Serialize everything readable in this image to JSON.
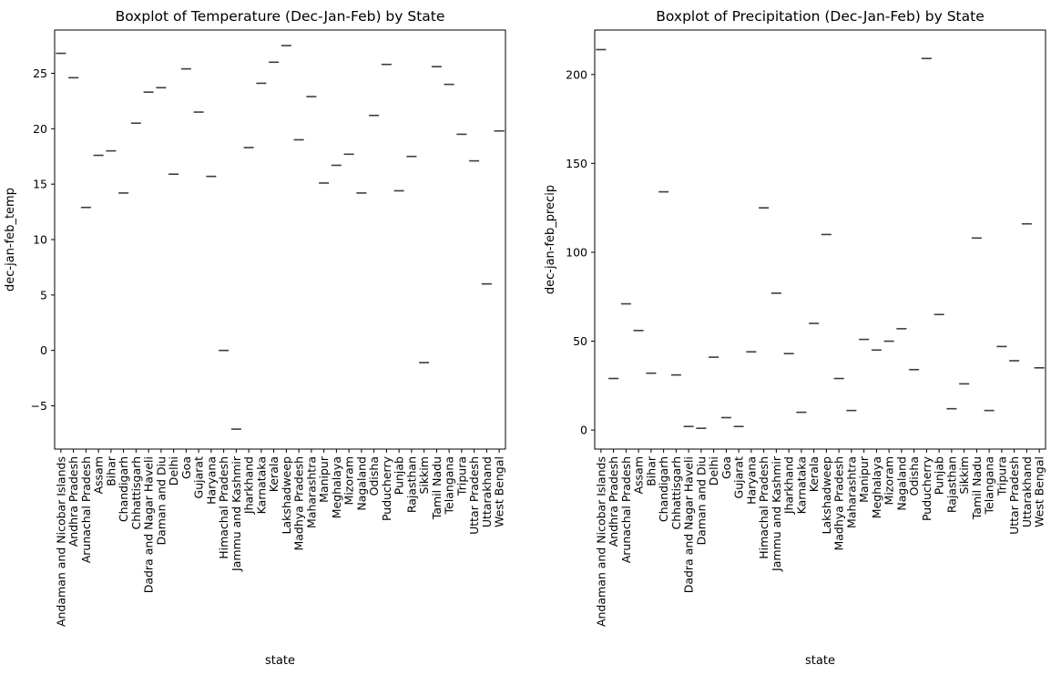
{
  "chart_data": [
    {
      "type": "box",
      "title": "Boxplot of Temperature (Dec-Jan-Feb) by State",
      "xlabel": "state",
      "ylabel": "dec-jan-feb_temp",
      "ylim": [
        -8.9,
        28.9
      ],
      "yticks": [
        -5,
        0,
        5,
        10,
        15,
        20,
        25
      ],
      "categories": [
        "Andaman and Nicobar Islands",
        "Andhra Pradesh",
        "Arunachal Pradesh",
        "Assam",
        "Bihar",
        "Chandigarh",
        "Chhattisgarh",
        "Dadra and Nagar Haveli",
        "Daman and Diu",
        "Delhi",
        "Goa",
        "Gujarat",
        "Haryana",
        "Himachal Pradesh",
        "Jammu and Kashmir",
        "Jharkhand",
        "Karnataka",
        "Kerala",
        "Lakshadweep",
        "Madhya Pradesh",
        "Maharashtra",
        "Manipur",
        "Meghalaya",
        "Mizoram",
        "Nagaland",
        "Odisha",
        "Puducherry",
        "Punjab",
        "Rajasthan",
        "Sikkim",
        "Tamil Nadu",
        "Telangana",
        "Tripura",
        "Uttar Pradesh",
        "Uttarakhand",
        "West Bengal"
      ],
      "values": [
        26.8,
        24.6,
        12.9,
        17.6,
        18.0,
        14.2,
        20.5,
        23.3,
        23.7,
        15.9,
        25.4,
        21.5,
        15.7,
        0.0,
        -7.1,
        18.3,
        24.1,
        26.0,
        27.5,
        19.0,
        22.9,
        15.1,
        16.7,
        17.7,
        14.2,
        21.2,
        25.8,
        14.4,
        17.5,
        -1.1,
        25.6,
        24.0,
        19.5,
        17.1,
        6.0,
        19.8
      ],
      "grid": false
    },
    {
      "type": "box",
      "title": "Boxplot of Precipitation (Dec-Jan-Feb) by State",
      "xlabel": "state",
      "ylabel": "dec-jan-feb_precip",
      "ylim": [
        -10.7,
        225
      ],
      "yticks": [
        0,
        50,
        100,
        150,
        200
      ],
      "categories": [
        "Andaman and Nicobar Islands",
        "Andhra Pradesh",
        "Arunachal Pradesh",
        "Assam",
        "Bihar",
        "Chandigarh",
        "Chhattisgarh",
        "Dadra and Nagar Haveli",
        "Daman and Diu",
        "Delhi",
        "Goa",
        "Gujarat",
        "Haryana",
        "Himachal Pradesh",
        "Jammu and Kashmir",
        "Jharkhand",
        "Karnataka",
        "Kerala",
        "Lakshadweep",
        "Madhya Pradesh",
        "Maharashtra",
        "Manipur",
        "Meghalaya",
        "Mizoram",
        "Nagaland",
        "Odisha",
        "Puducherry",
        "Punjab",
        "Rajasthan",
        "Sikkim",
        "Tamil Nadu",
        "Telangana",
        "Tripura",
        "Uttar Pradesh",
        "Uttarakhand",
        "West Bengal"
      ],
      "values": [
        214,
        29,
        71,
        56,
        32,
        134,
        31,
        2,
        1,
        41,
        7,
        2,
        44,
        125,
        77,
        43,
        10,
        60,
        110,
        29,
        11,
        51,
        45,
        50,
        57,
        34,
        209,
        65,
        12,
        26,
        108,
        11,
        47,
        39,
        116,
        35
      ],
      "grid": false
    }
  ]
}
